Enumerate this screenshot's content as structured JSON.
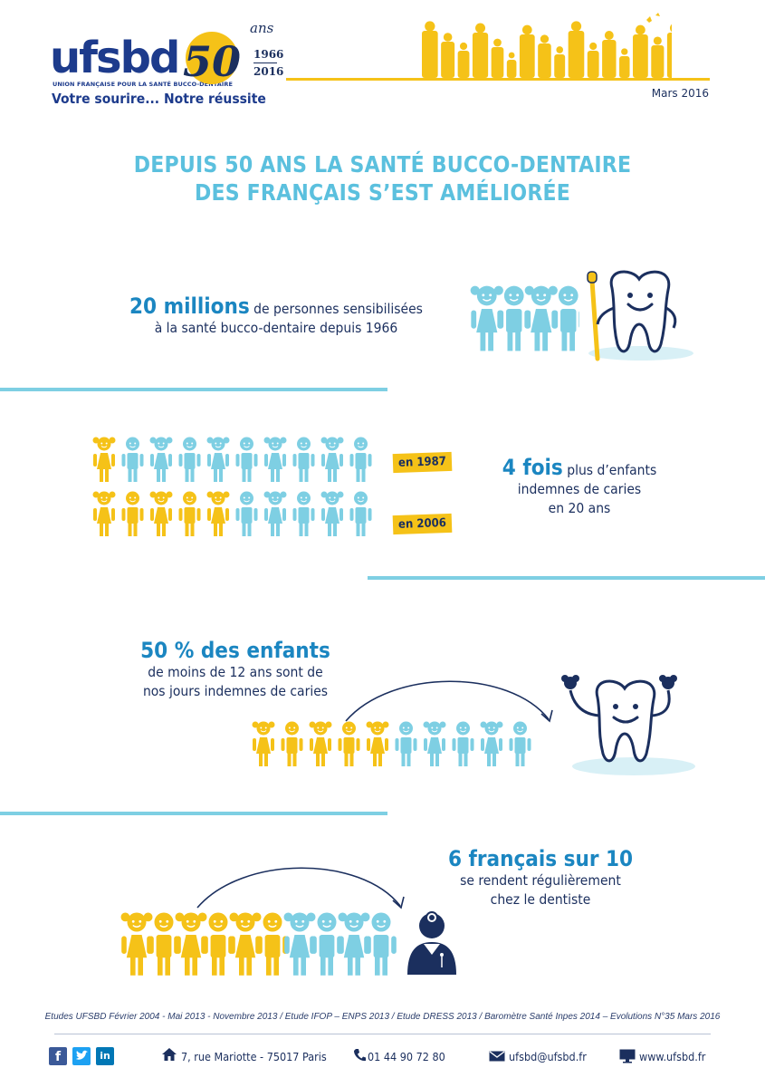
{
  "header": {
    "logo_text": "ufsbd",
    "logo_subtitle": "UNION FRANÇAISE POUR LA SANTÉ BUCCO-DENTAIRE",
    "anniversary_number": "50",
    "anniversary_suffix": "ans",
    "year_start": "1966",
    "year_end": "2016",
    "tagline": "Votre sourire... Notre réussite",
    "date": "Mars 2016"
  },
  "title_line1": "DEPUIS 50 ANS LA SANTÉ BUCCO-DENTAIRE",
  "title_line2": "DES FRANÇAIS S’EST AMÉLIORÉE",
  "stat1": {
    "highlight": "20 millions",
    "text_a": " de personnes sensibilisées",
    "text_b": "à la santé bucco-dentaire depuis 1966"
  },
  "stat2": {
    "highlight": "4 fois",
    "text_a": " plus d’enfants",
    "text_b": "indemnes de caries",
    "text_c": "en 20 ans",
    "badge_1987": "en 1987",
    "badge_2006": "en 2006",
    "yellow_1987": 1,
    "yellow_2006": 5,
    "total": 10
  },
  "stat3": {
    "highlight": "50 % des enfants",
    "text_a": "de moins de 12 ans sont de",
    "text_b": "nos jours indemnes de caries",
    "yellow": 5,
    "total": 10
  },
  "stat4": {
    "highlight": "6 français sur 10",
    "text_a": "se rendent régulièrement",
    "text_b": "chez le dentiste",
    "yellow": 6,
    "total": 10
  },
  "sources": "Etudes UFSBD Février 2004 - Mai 2013 - Novembre 2013 / Etude IFOP – ENPS 2013 / Etude DRESS 2013 / Baromètre Santé Inpes 2014 – Evolutions N°35 Mars 2016",
  "footer": {
    "facebook": "f",
    "linkedin": "in",
    "address": "7, rue Mariotte - 75017 Paris",
    "phone": "01 44 90 72 80",
    "email": "ufsbd@ufsbd.fr",
    "website": "www.ufsbd.fr"
  },
  "colors": {
    "yellow": "#f5c218",
    "blue": "#7ecfe3",
    "dark": "#1b2f5e",
    "accent": "#1b86c1"
  }
}
